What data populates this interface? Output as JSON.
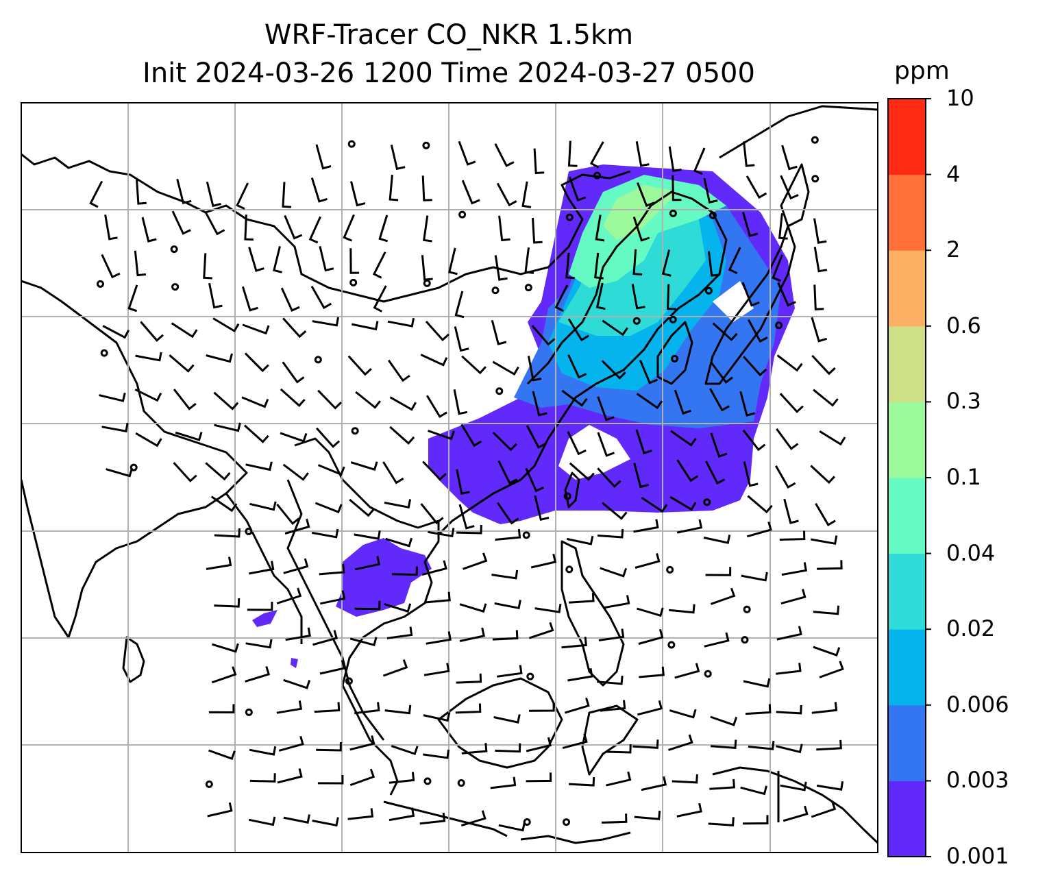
{
  "title": {
    "line1": "WRF-Tracer CO_NKR 1.5km",
    "line2": "Init 2024-03-26 1200 Time 2024-03-27 0500"
  },
  "colorbar": {
    "unit": "ppm",
    "levels": [
      "0.001",
      "0.003",
      "0.006",
      "0.02",
      "0.04",
      "0.1",
      "0.3",
      "0.6",
      "2",
      "4",
      "10"
    ],
    "colors": [
      "#6229fb",
      "#3475f2",
      "#05b3ed",
      "#2fdbd7",
      "#65f9c3",
      "#9cfa9c",
      "#cfe089",
      "#fbb064",
      "#fe6f3a",
      "#fe2a13"
    ]
  },
  "map": {
    "field": "CO_NKR tracer concentration",
    "grid_lines": true,
    "wind_barbs": true,
    "coastline_color": "#000000",
    "grid_color": "#b0b0b0"
  }
}
